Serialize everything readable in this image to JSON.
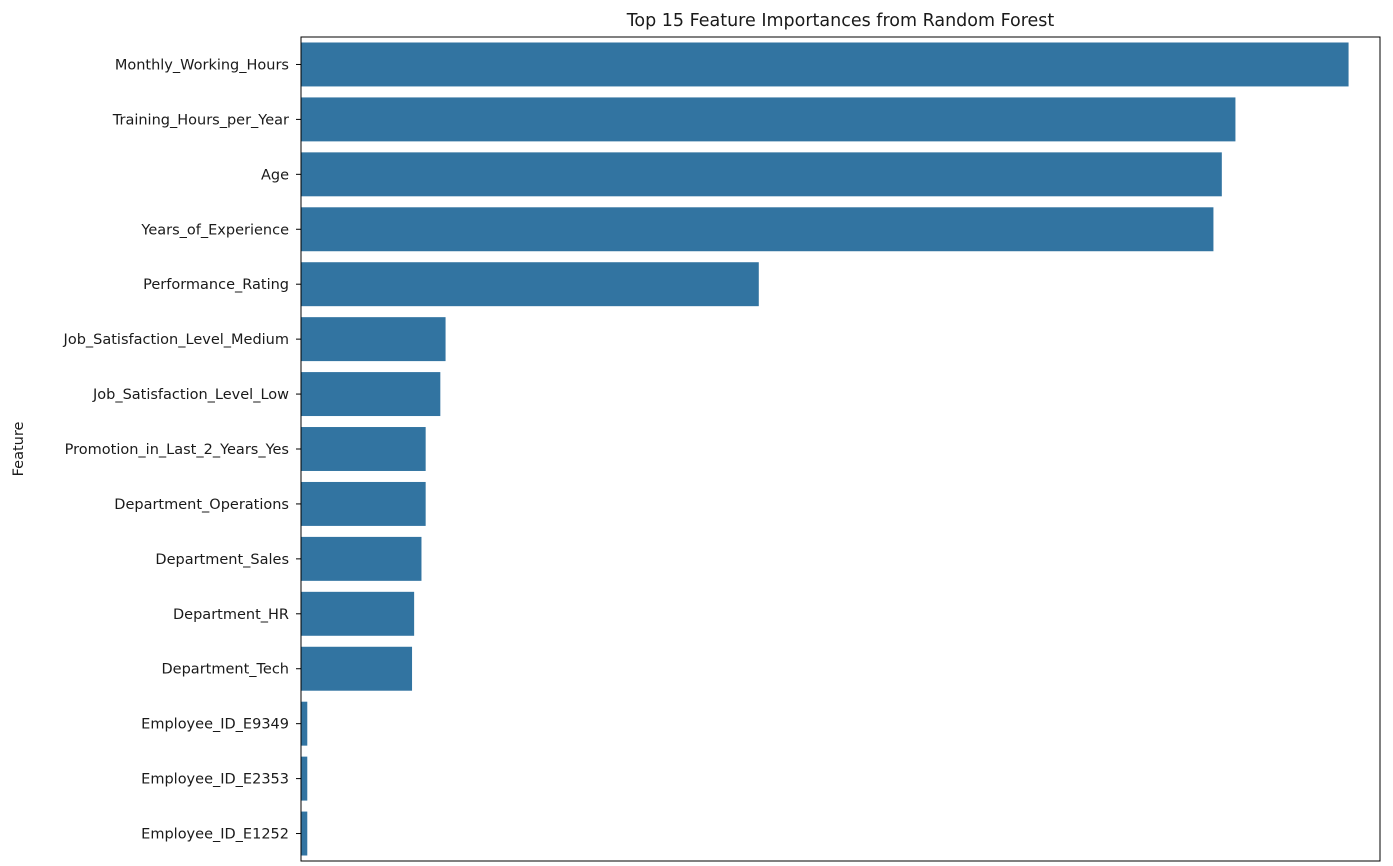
{
  "chart_data": {
    "type": "bar",
    "orientation": "horizontal",
    "title": "Top 15 Feature Importances from Random Forest",
    "ylabel": "Feature",
    "xlabel": "",
    "bar_color": "#3274a1",
    "categories": [
      "Monthly_Working_Hours",
      "Training_Hours_per_Year",
      "Age",
      "Years_of_Experience",
      "Performance_Rating",
      "Job_Satisfaction_Level_Medium",
      "Job_Satisfaction_Level_Low",
      "Promotion_in_Last_2_Years_Yes",
      "Department_Operations",
      "Department_Sales",
      "Department_HR",
      "Department_Tech",
      "Employee_ID_E9349",
      "Employee_ID_E2353",
      "Employee_ID_E1252"
    ],
    "values": [
      1.0,
      0.892,
      0.879,
      0.871,
      0.437,
      0.138,
      0.133,
      0.119,
      0.119,
      0.115,
      0.108,
      0.106,
      0.006,
      0.006,
      0.006
    ],
    "xlim": [
      0,
      1.03
    ],
    "grid": false
  }
}
